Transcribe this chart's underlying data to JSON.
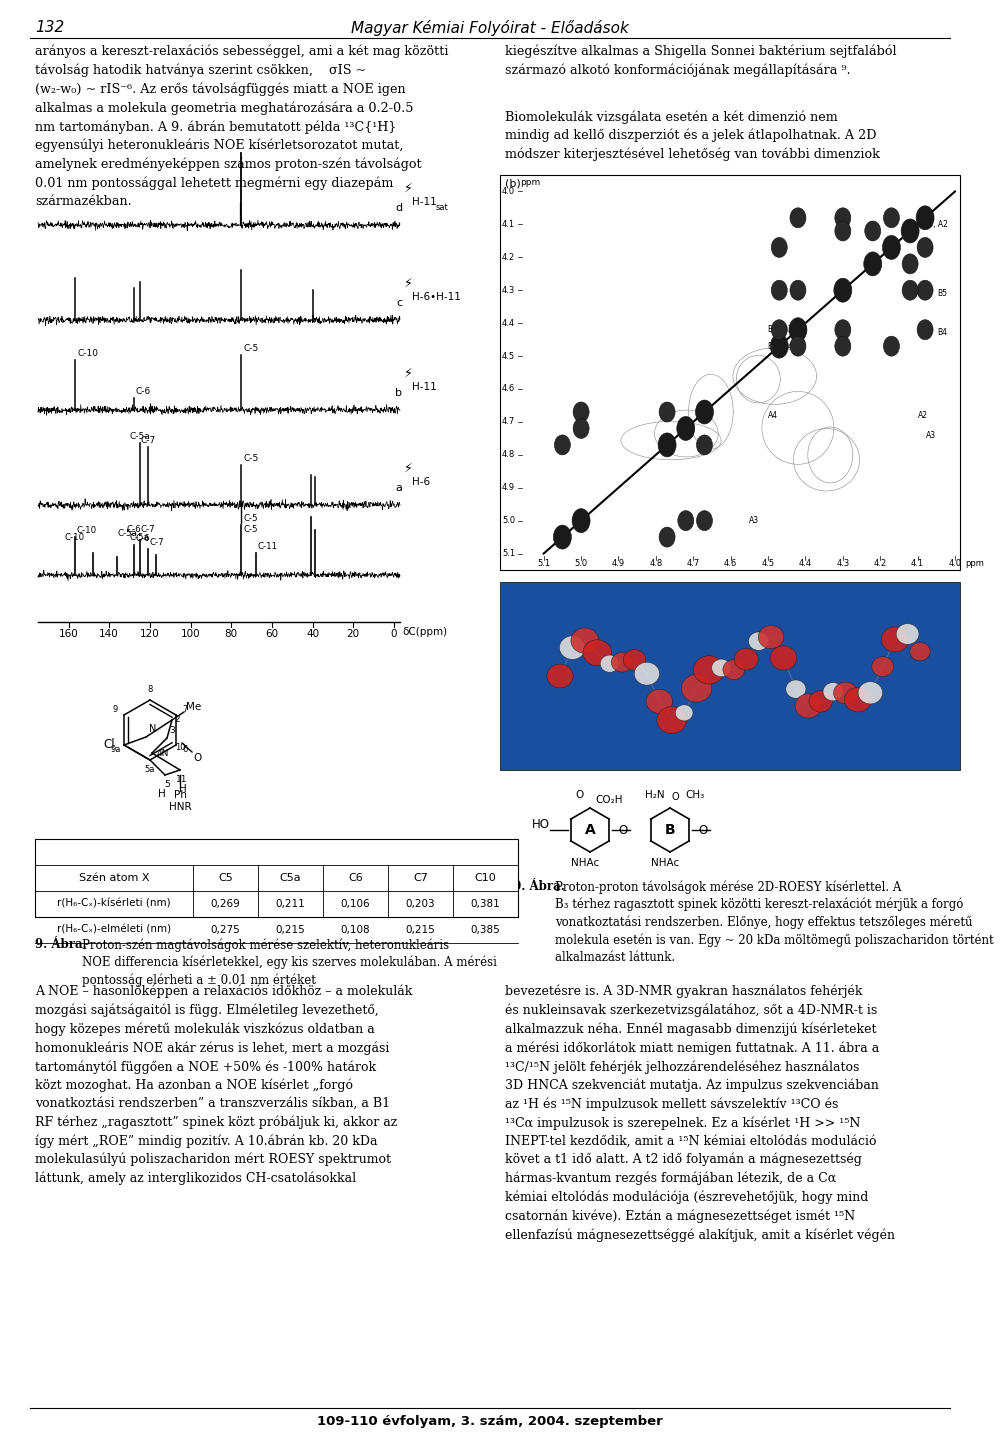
{
  "page_number": "132",
  "journal_title": "Magyar Kémiai Folyóirat - Előadások",
  "left_text": "arányos a kereszt-relaxációs sebességgel, ami a két mag közötti\ntávolság hatodik hatványa szerint csökken,    σIS ~\n(w2-w0) ~ rIS⁻⁶. Az erős távolságfüggés miatt a NOE igen\nalkalmas a molekula geometria meghatározására a 0.2-0.5\nnm tartományban. A 9. ábrán bemutatott példa ¹³C{¹H}\negyensúlyi heteronukleáris NOE kísérletsorozatot mutat,\namelynek eredményeképpen számos proton-szén távolságot\n0.01 nm pontossággal lehetett megmérni egy diazepám\nszármazékban.",
  "right_text1": "kiegészítve alkalmas a Shigella Sonnei baktérium sejtfalából\nszármazó alkotó konformációjának megállapítására ⁹.",
  "right_text2": "Biomolekulák vizsgálata esetén a két dimenzio nem\nmindig ad kellő diszperziót és a jelek átlapolhatnak. A 2D\nmódszer kiterjesztésével lehetőség van további dimenziok",
  "table_headers": [
    "Szén atom X",
    "C5",
    "C5a",
    "C6",
    "C7",
    "C10"
  ],
  "table_row1_label": "r(H₆-Cₓ)-kísérleti (nm)",
  "table_row1_values": [
    "0,269",
    "0,211",
    "0,106",
    "0,203",
    "0,381"
  ],
  "table_row2_label": "r(H₆-Cₓ)-elméleti (nm)",
  "table_row2_values": [
    "0,275",
    "0,215",
    "0,108",
    "0,215",
    "0,385"
  ],
  "fig9_caption_bold": "9. Ábra.",
  "fig9_caption_rest": " Proton-szén magtávolságok mérése szelektív, heteronukleáris\nNOE differencia kísérletekkel, egy kis szerves molekulában. A mérési\npontosság elérheti a ± 0.01 nm értéket",
  "fig10_caption_bold": "10. Ábra.",
  "fig10_caption_rest": " Proton-proton távolságok mérése 2D-ROESY kísérlettel. A\nB3 térhez ragasztott spinek közötti kereszt-relaxációt mérjük a forgó\nvonatkoztási rendszerben. Előnye, hogy effektus tetszőleges méretű\nmolekula esetén is van. Egy ~ 20 kDa möltömegű poliszacharidon történt\nalkalműazást láttunk.",
  "bottom_left_text": "A NOE – hasonlóképpen a relaxációs időkhöz – a molekulák\nmozgási sajátságaitól is függ. Elméletileg levezethető,\nhogy közepes méretű molekulák viszkózus oldatban a\nhomonukleáris NOE akár zérus is lehet, mert a mozgási\ntartománytól függően a NOE +50% és -100% határok\nközt mozoghat. Ha azonban a NOE kísérlet „forgó\nvonatkoztási rendszerben” a transzverzális síkban, a B1\nRF térhez „ragasztott” spinek közt próbáljuk ki, akkor az\nígy mért „ROE” mindig pozitív. A 10.ábrán kb. 20 kDa\nmolekulasúlyú poliszacharidon mért ROESY spektrumot\nláttunk, amely az interglikozidos CH-csatolásokkal",
  "bottom_right_text": "bevezetésre is. A 3D-NMR gyakran használatos fehérjék\nés nukleinsavak szerkezetvizsgálatához, sőt a 4D-NMR-t is\nalkalmazzuk néha. Ennél magasabb dimenzijú kísérleteket\na mérési időkorlátok miatt nemigen futtatnak. A 11. ábra a\n¹³C/¹⁵N jelölt fehérjék jelhozzárendeléséhez használatos\n3D HNCA szekvenciát mutatja. Az impulzus szekvenciában\naz ¹H és ¹⁵N impulzusok mellett sávszelektív ¹³CO és\n¹³Cα impulzusok is szerepelnek. Ez a kísérlet ¹H >> ¹⁵N\nINEPT-tel kezdődik, amit a ¹⁵N kémiai eltolódás moduláció\nkövet a t1 idő alatt. A t2 idő folyamán a mágnesezettség\nhármas-kvantum rezgés formájában létezik, de a Cα\nkémiai eltolódás modulációja (észrevehetőjük, hogy mind\ncsatornán kivéve). Eztán a mágnesezettséget ismét ¹⁵N\nellenfazísú mágnesezettséggé alakítjuk, amit a kísérlet végén",
  "footer_text": "109-110 évfolyam, 3. szám, 2004. szeptember",
  "bg_color": "#ffffff"
}
